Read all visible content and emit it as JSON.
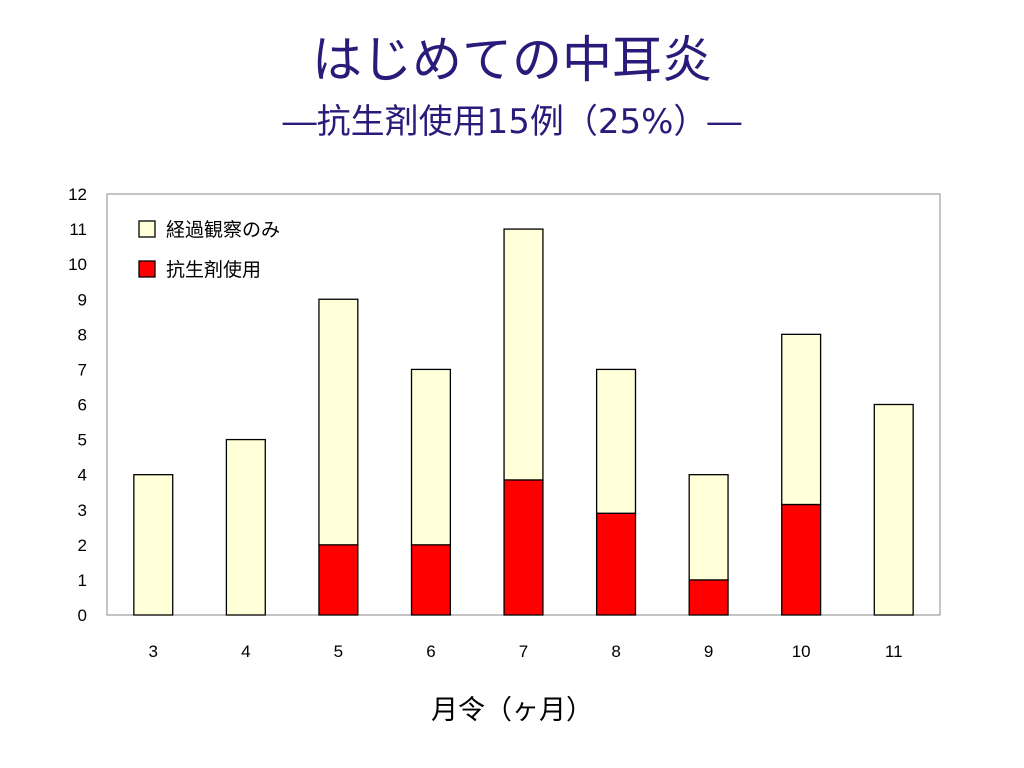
{
  "slide": {
    "title": "はじめての中耳炎",
    "subtitle": "―抗生剤使用15例（25%）―"
  },
  "chart_data": {
    "type": "bar",
    "stacked": true,
    "categories": [
      "3",
      "4",
      "5",
      "6",
      "7",
      "8",
      "9",
      "10",
      "11"
    ],
    "series": [
      {
        "name": "経過観察のみ",
        "values": [
          4,
          5,
          7,
          5,
          7.15,
          4.1,
          3,
          4.85,
          6
        ],
        "color": "#ffffd8"
      },
      {
        "name": "抗生剤使用",
        "values": [
          0,
          0,
          2,
          2,
          3.85,
          2.9,
          1,
          3.15,
          0
        ],
        "color": "#ff0000"
      }
    ],
    "totals": [
      4,
      5,
      9,
      7,
      11,
      7,
      4,
      8,
      6
    ],
    "ylim": [
      0,
      12
    ],
    "yticks": [
      "0",
      "1",
      "2",
      "3",
      "4",
      "5",
      "6",
      "7",
      "8",
      "9",
      "10",
      "11",
      "12"
    ],
    "xlabel": "月令（ヶ月）",
    "ylabel": "",
    "grid": false,
    "legend_position": "top-left"
  }
}
